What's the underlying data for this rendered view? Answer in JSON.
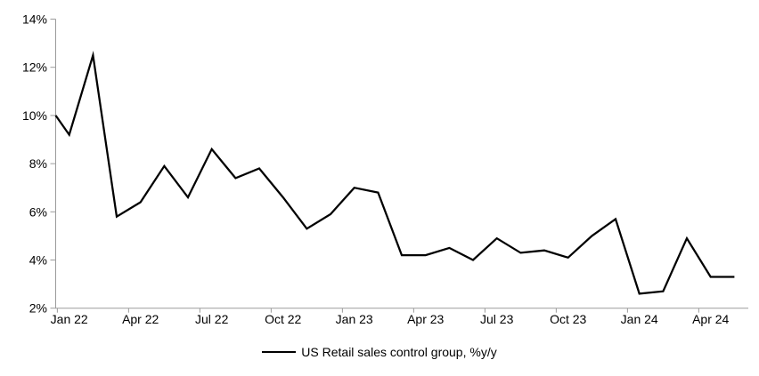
{
  "page": {
    "background": "#ffffff"
  },
  "chart_data": {
    "type": "line",
    "title": "",
    "legend_label": "US Retail sales control group, %y/y",
    "legend_position": "bottom-center",
    "categories": [
      "Jan 22",
      "Feb 22",
      "Mar 22",
      "Apr 22",
      "May 22",
      "Jun 22",
      "Jul 22",
      "Aug 22",
      "Sep 22",
      "Oct 22",
      "Nov 22",
      "Dec 22",
      "Jan 23",
      "Feb 23",
      "Mar 23",
      "Apr 23",
      "May 23",
      "Jun 23",
      "Jul 23",
      "Aug 23",
      "Sep 23",
      "Oct 23",
      "Nov 23",
      "Dec 23",
      "Jan 24",
      "Feb 24",
      "Mar 24",
      "Apr 24",
      "May 24"
    ],
    "values": [
      9.2,
      12.5,
      5.8,
      6.4,
      7.9,
      6.6,
      8.6,
      7.4,
      7.8,
      6.6,
      5.3,
      5.9,
      7.0,
      6.8,
      4.2,
      4.2,
      4.5,
      4.0,
      4.9,
      4.3,
      4.4,
      4.1,
      5.0,
      5.7,
      2.6,
      2.7,
      4.9,
      3.3,
      3.3
    ],
    "axis_entry_value": 10.0,
    "x_tick_labels": [
      "Jan 22",
      "Apr 22",
      "Jul 22",
      "Oct 22",
      "Jan 23",
      "Apr 23",
      "Jul 23",
      "Oct 23",
      "Jan 24",
      "Apr 24"
    ],
    "x_label_every_n_months": 3,
    "y_tick_labels": [
      "14%",
      "12%",
      "10%",
      "8%",
      "6%",
      "4%",
      "2%"
    ],
    "ylim": [
      2,
      14
    ],
    "y_tick_step": 2,
    "grid": false,
    "line_color": "#000000",
    "axis_color": "#9b9b9b",
    "text_color": "#000000"
  }
}
